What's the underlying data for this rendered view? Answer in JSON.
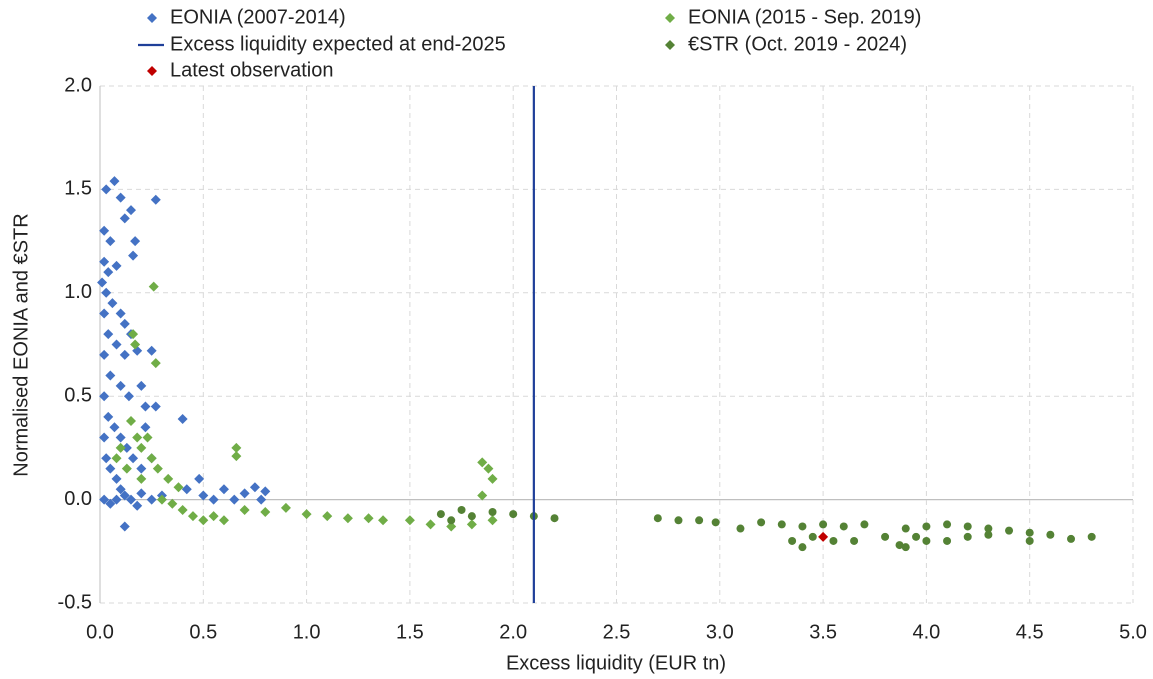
{
  "chart_data": {
    "type": "scatter",
    "x_label": "Excess liquidity (EUR tn)",
    "y_label": "Normalised EONIA and €STR",
    "xlim": [
      0,
      5
    ],
    "ylim": [
      -0.5,
      2
    ],
    "xticks": [
      {
        "value": 0,
        "label": "0.0"
      },
      0.5,
      {
        "value": 1,
        "label": "1.0"
      },
      1.5,
      {
        "value": 2,
        "label": "2.0"
      },
      2.5,
      {
        "value": 3,
        "label": "3.0"
      },
      3.5,
      {
        "value": 4,
        "label": "4.0"
      },
      4.5,
      {
        "value": 5,
        "label": "5.0"
      }
    ],
    "yticks": [
      -0.5,
      {
        "value": 0,
        "label": "0.0"
      },
      0.5,
      {
        "value": 1,
        "label": "1.0"
      },
      1.5,
      {
        "value": 2,
        "label": "2.0"
      }
    ],
    "grid": true,
    "vline": {
      "name": "Excess liquidity expected at end-2025",
      "x": 2.1,
      "color": "#1f3f99"
    },
    "series": [
      {
        "name": "EONIA (2007-2014)",
        "color": "#4472c4",
        "marker": "diamond",
        "x": [
          0.03,
          0.07,
          0.1,
          0.12,
          0.15,
          0.27,
          0.17,
          0.02,
          0.05,
          0.02,
          0.04,
          0.08,
          0.16,
          0.01,
          0.03,
          0.06,
          0.1,
          0.12,
          0.15,
          0.02,
          0.04,
          0.08,
          0.12,
          0.18,
          0.25,
          0.02,
          0.05,
          0.1,
          0.14,
          0.2,
          0.22,
          0.27,
          0.02,
          0.04,
          0.07,
          0.1,
          0.13,
          0.16,
          0.2,
          0.02,
          0.03,
          0.05,
          0.08,
          0.1,
          0.12,
          0.15,
          0.2,
          0.25,
          0.3,
          0.4,
          0.12,
          0.42,
          0.48,
          0.5,
          0.55,
          0.6,
          0.65,
          0.7,
          0.75,
          0.8,
          0.78,
          0.02,
          0.05,
          0.08,
          0.18,
          0.25,
          0.22
        ],
        "values": [
          1.5,
          1.54,
          1.46,
          1.36,
          1.4,
          1.45,
          1.25,
          1.3,
          1.25,
          1.15,
          1.1,
          1.13,
          1.18,
          1.05,
          1.0,
          0.95,
          0.9,
          0.85,
          0.8,
          0.9,
          0.8,
          0.75,
          0.7,
          0.72,
          0.72,
          0.7,
          0.6,
          0.55,
          0.5,
          0.55,
          0.45,
          0.45,
          0.5,
          0.4,
          0.35,
          0.3,
          0.25,
          0.2,
          0.15,
          0.3,
          0.2,
          0.15,
          0.1,
          0.05,
          0.02,
          0.0,
          0.03,
          0.0,
          0.02,
          0.39,
          -0.13,
          0.05,
          0.1,
          0.02,
          0.0,
          0.05,
          0.0,
          0.03,
          0.06,
          0.04,
          0.0,
          0.0,
          -0.02,
          0.0,
          -0.03,
          0.2,
          0.35
        ]
      },
      {
        "name": "EONIA (2015 - Sep. 2019)",
        "color": "#70ad47",
        "marker": "diamond",
        "x": [
          0.15,
          0.18,
          0.2,
          0.25,
          0.28,
          0.13,
          0.16,
          0.26,
          0.27,
          0.17,
          0.2,
          0.3,
          0.35,
          0.4,
          0.45,
          0.5,
          0.55,
          0.6,
          0.66,
          0.66,
          0.7,
          0.8,
          0.9,
          1.0,
          1.1,
          1.2,
          1.3,
          1.37,
          1.5,
          1.6,
          1.7,
          1.8,
          1.85,
          1.88,
          1.9,
          1.85,
          1.9,
          0.33,
          0.38,
          0.08,
          0.1,
          0.23
        ],
        "values": [
          0.38,
          0.3,
          0.25,
          0.2,
          0.15,
          0.15,
          0.8,
          1.03,
          0.66,
          0.75,
          0.1,
          0.0,
          -0.02,
          -0.05,
          -0.08,
          -0.1,
          -0.08,
          -0.1,
          0.25,
          0.21,
          -0.05,
          -0.06,
          -0.04,
          -0.07,
          -0.08,
          -0.09,
          -0.09,
          -0.1,
          -0.1,
          -0.12,
          -0.13,
          -0.12,
          0.18,
          0.15,
          0.1,
          0.02,
          -0.1,
          0.1,
          0.06,
          0.2,
          0.25,
          0.3
        ]
      },
      {
        "name": "€STR (Oct. 2019 - 2024)",
        "color": "#548235",
        "marker": "circle",
        "x": [
          1.65,
          1.7,
          1.75,
          1.8,
          1.9,
          2.0,
          2.1,
          2.2,
          2.7,
          2.8,
          2.9,
          2.98,
          3.1,
          3.2,
          3.3,
          3.4,
          3.5,
          3.6,
          3.7,
          3.35,
          3.4,
          3.45,
          3.55,
          3.65,
          3.8,
          3.87,
          3.9,
          3.95,
          4.0,
          4.1,
          4.2,
          3.9,
          4.0,
          4.1,
          4.2,
          4.3,
          4.4,
          4.5,
          4.6,
          4.7,
          4.8,
          4.3,
          4.5
        ],
        "values": [
          -0.07,
          -0.1,
          -0.05,
          -0.08,
          -0.06,
          -0.07,
          -0.08,
          -0.09,
          -0.09,
          -0.1,
          -0.1,
          -0.11,
          -0.14,
          -0.11,
          -0.12,
          -0.13,
          -0.12,
          -0.13,
          -0.12,
          -0.2,
          -0.23,
          -0.18,
          -0.2,
          -0.2,
          -0.18,
          -0.22,
          -0.23,
          -0.18,
          -0.2,
          -0.2,
          -0.18,
          -0.14,
          -0.13,
          -0.12,
          -0.13,
          -0.14,
          -0.15,
          -0.16,
          -0.17,
          -0.19,
          -0.18,
          -0.17,
          -0.2
        ]
      },
      {
        "name": "Latest observation",
        "color": "#c00000",
        "marker": "diamond",
        "x": [
          3.5
        ],
        "values": [
          -0.18
        ]
      }
    ]
  }
}
